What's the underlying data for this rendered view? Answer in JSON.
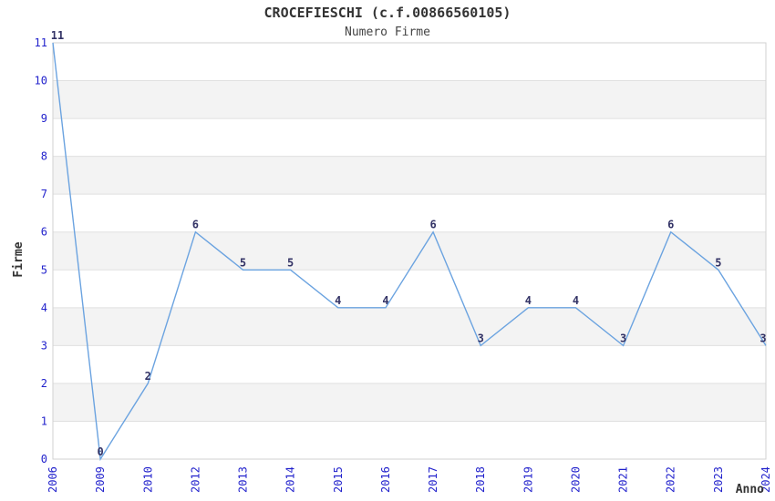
{
  "chart_data": {
    "type": "line",
    "title": "CROCEFIESCHI (c.f.00866560105)",
    "subtitle": "Numero Firme",
    "xlabel": "Anno",
    "ylabel": "Firme",
    "categories": [
      "2006",
      "2009",
      "2010",
      "2012",
      "2013",
      "2014",
      "2015",
      "2016",
      "2017",
      "2018",
      "2019",
      "2020",
      "2021",
      "2022",
      "2023",
      "2024"
    ],
    "series": [
      {
        "name": "Numero Firme",
        "values": [
          11,
          0,
          2,
          6,
          5,
          5,
          4,
          4,
          6,
          3,
          4,
          4,
          3,
          6,
          5,
          3
        ]
      }
    ],
    "ylim": [
      0,
      11
    ],
    "yticks": [
      0,
      1,
      2,
      3,
      4,
      5,
      6,
      7,
      8,
      9,
      10,
      11
    ],
    "grid": true,
    "legend": "none",
    "data_labels": true,
    "band_rows": [
      [
        1,
        2
      ],
      [
        3,
        4
      ],
      [
        5,
        6
      ],
      [
        7,
        8
      ],
      [
        9,
        10
      ]
    ],
    "colors": {
      "line": "#6ba3e0",
      "tick_label": "#2222cc",
      "data_label": "#333366",
      "axis_title": "#333333",
      "title": "#333333",
      "subtitle": "#444444",
      "band": "#f3f3f3",
      "gridline": "#e0e0e0",
      "plot_border": "#d2d2d2",
      "plot_background": "#ffffff"
    }
  }
}
